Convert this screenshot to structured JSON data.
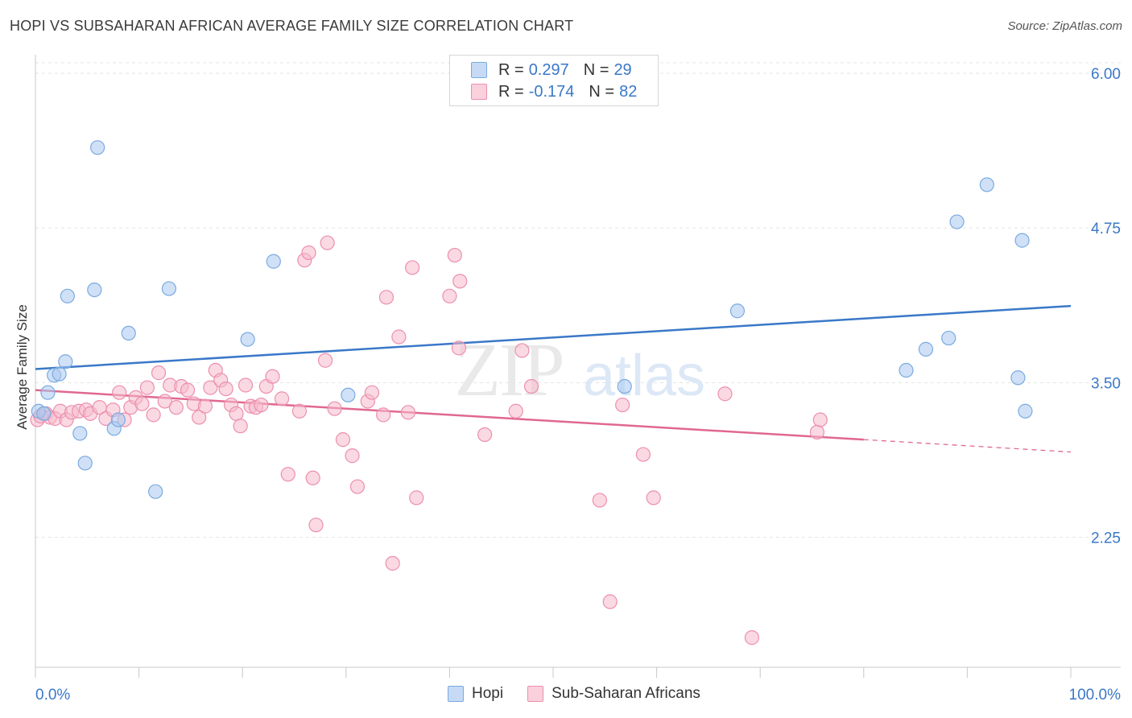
{
  "chart_data": {
    "type": "scatter",
    "title": "HOPI VS SUBSAHARAN AFRICAN AVERAGE FAMILY SIZE CORRELATION CHART",
    "source": "Source: ZipAtlas.com",
    "xlabel": "",
    "ylabel": "Average Family Size",
    "x_tick_labels": [
      "0.0%",
      "100.0%"
    ],
    "y_tick_labels": [
      "6.00",
      "4.75",
      "3.50",
      "2.25"
    ],
    "y_ticks": [
      6.0,
      4.75,
      3.5,
      2.25
    ],
    "xlim": [
      0,
      100
    ],
    "ylim": [
      1.2,
      6.15
    ],
    "grid": true,
    "watermark": "ZIPatlas",
    "legend": [
      {
        "r_label": "R =",
        "r_value": "0.297",
        "n_label": "N =",
        "n_value": "29"
      },
      {
        "r_label": "R =",
        "r_value": "-0.174",
        "n_label": "N =",
        "n_value": "82"
      }
    ],
    "series": [
      {
        "name": "Hopi",
        "color": "#a9c8f0",
        "edge": "#7aaae0",
        "line_color": "#3a78c8",
        "trend": {
          "x0": 0,
          "y0": 3.61,
          "x1": 100,
          "y1": 4.12,
          "dash_from": null
        },
        "points": [
          [
            0.3,
            3.27
          ],
          [
            0.8,
            3.25
          ],
          [
            1.2,
            3.42
          ],
          [
            1.8,
            3.56
          ],
          [
            2.3,
            3.57
          ],
          [
            2.9,
            3.67
          ],
          [
            3.1,
            4.2
          ],
          [
            4.3,
            3.09
          ],
          [
            4.8,
            2.85
          ],
          [
            5.7,
            4.25
          ],
          [
            6.0,
            5.4
          ],
          [
            7.6,
            3.13
          ],
          [
            8.0,
            3.2
          ],
          [
            9.0,
            3.9
          ],
          [
            11.6,
            2.62
          ],
          [
            12.9,
            4.26
          ],
          [
            20.5,
            3.85
          ],
          [
            23.0,
            4.48
          ],
          [
            30.2,
            3.4
          ],
          [
            56.9,
            3.47
          ],
          [
            67.8,
            4.08
          ],
          [
            84.1,
            3.6
          ],
          [
            86.0,
            3.77
          ],
          [
            88.2,
            3.86
          ],
          [
            89.0,
            4.8
          ],
          [
            91.9,
            5.1
          ],
          [
            94.9,
            3.54
          ],
          [
            95.3,
            4.65
          ],
          [
            95.6,
            3.27
          ]
        ]
      },
      {
        "name": "Sub-Saharan Africans",
        "color": "#f5b9cc",
        "edge": "#ec8fae",
        "line_color": "#e06890",
        "trend": {
          "x0": 0,
          "y0": 3.44,
          "x1": 100,
          "y1": 2.94,
          "dash_from": 80
        },
        "points": [
          [
            0.2,
            3.2
          ],
          [
            0.5,
            3.23
          ],
          [
            1.0,
            3.25
          ],
          [
            1.4,
            3.22
          ],
          [
            1.9,
            3.21
          ],
          [
            2.4,
            3.27
          ],
          [
            3.0,
            3.2
          ],
          [
            3.5,
            3.26
          ],
          [
            4.2,
            3.27
          ],
          [
            4.9,
            3.28
          ],
          [
            5.3,
            3.25
          ],
          [
            6.2,
            3.3
          ],
          [
            6.8,
            3.21
          ],
          [
            7.5,
            3.28
          ],
          [
            8.1,
            3.42
          ],
          [
            8.6,
            3.2
          ],
          [
            9.2,
            3.3
          ],
          [
            9.7,
            3.38
          ],
          [
            10.3,
            3.33
          ],
          [
            10.8,
            3.46
          ],
          [
            11.4,
            3.24
          ],
          [
            11.9,
            3.58
          ],
          [
            12.5,
            3.35
          ],
          [
            13.0,
            3.48
          ],
          [
            13.6,
            3.3
          ],
          [
            14.1,
            3.47
          ],
          [
            14.7,
            3.44
          ],
          [
            15.3,
            3.33
          ],
          [
            15.8,
            3.22
          ],
          [
            16.4,
            3.31
          ],
          [
            16.9,
            3.46
          ],
          [
            17.4,
            3.6
          ],
          [
            17.9,
            3.52
          ],
          [
            18.4,
            3.45
          ],
          [
            18.9,
            3.32
          ],
          [
            19.4,
            3.25
          ],
          [
            19.8,
            3.15
          ],
          [
            20.3,
            3.48
          ],
          [
            20.8,
            3.31
          ],
          [
            21.3,
            3.3
          ],
          [
            21.8,
            3.32
          ],
          [
            22.3,
            3.47
          ],
          [
            22.9,
            3.55
          ],
          [
            23.8,
            3.37
          ],
          [
            24.4,
            2.76
          ],
          [
            25.5,
            3.27
          ],
          [
            26.0,
            4.49
          ],
          [
            26.4,
            4.55
          ],
          [
            26.8,
            2.73
          ],
          [
            27.1,
            2.35
          ],
          [
            28.0,
            3.68
          ],
          [
            28.2,
            4.63
          ],
          [
            28.9,
            3.29
          ],
          [
            29.7,
            3.04
          ],
          [
            30.6,
            2.91
          ],
          [
            31.1,
            2.66
          ],
          [
            32.1,
            3.35
          ],
          [
            32.5,
            3.42
          ],
          [
            33.6,
            3.24
          ],
          [
            33.9,
            4.19
          ],
          [
            34.5,
            2.04
          ],
          [
            35.1,
            3.87
          ],
          [
            36.0,
            3.26
          ],
          [
            36.4,
            4.43
          ],
          [
            36.8,
            2.57
          ],
          [
            40.0,
            4.2
          ],
          [
            40.5,
            4.53
          ],
          [
            40.9,
            3.78
          ],
          [
            41.0,
            4.32
          ],
          [
            43.4,
            3.08
          ],
          [
            46.4,
            3.27
          ],
          [
            47.0,
            3.76
          ],
          [
            47.9,
            3.47
          ],
          [
            54.5,
            2.55
          ],
          [
            55.5,
            1.73
          ],
          [
            56.7,
            3.32
          ],
          [
            58.7,
            2.92
          ],
          [
            59.7,
            2.57
          ],
          [
            66.6,
            3.41
          ],
          [
            69.2,
            1.44
          ],
          [
            75.5,
            3.1
          ],
          [
            75.8,
            3.2
          ]
        ]
      }
    ]
  }
}
